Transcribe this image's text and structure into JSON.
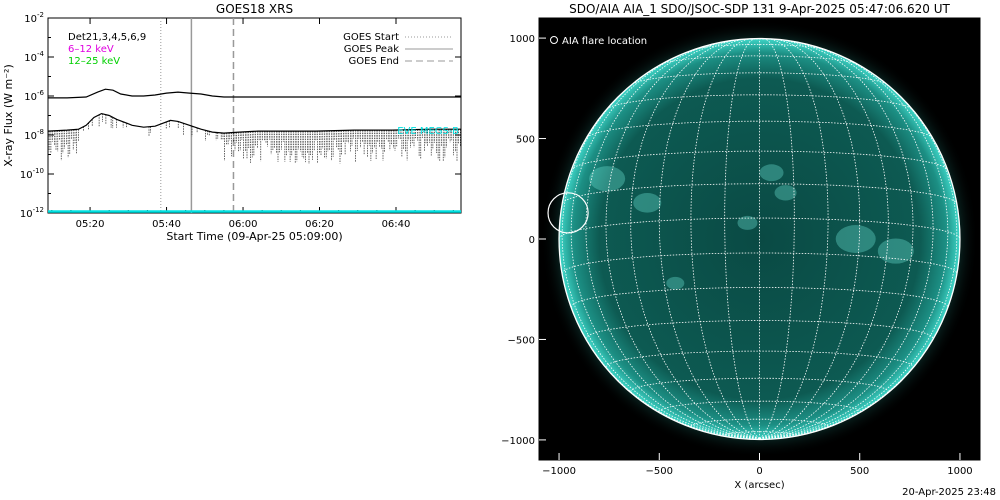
{
  "chart_data": [
    {
      "type": "line",
      "title": "GOES18 XRS",
      "xlabel": "Start Time (09-Apr-25 05:09:00)",
      "ylabel": "X-ray Flux (W m⁻²)",
      "log_y": true,
      "ylim_exponent": [
        -12,
        -2
      ],
      "xlim_minutes": [
        0,
        108
      ],
      "x_ticks": [
        {
          "label": "05:20",
          "min": 11
        },
        {
          "label": "05:40",
          "min": 31
        },
        {
          "label": "06:00",
          "min": 51
        },
        {
          "label": "06:20",
          "min": 71
        },
        {
          "label": "06:40",
          "min": 91
        }
      ],
      "y_ticks": [
        {
          "base": "10",
          "exp": "-2",
          "value": -2
        },
        {
          "base": "10",
          "exp": "-4",
          "value": -4
        },
        {
          "base": "10",
          "exp": "-6",
          "value": -6
        },
        {
          "base": "10",
          "exp": "-8",
          "value": -8
        },
        {
          "base": "10",
          "exp": "-10",
          "value": -10
        },
        {
          "base": "10",
          "exp": "-12",
          "value": -12
        }
      ],
      "legend_left": [
        {
          "text": "Det21,3,4,5,6,9",
          "color": "#000000"
        },
        {
          "text": "6–12 keV",
          "color": "#e000e0"
        },
        {
          "text": "12–25 keV",
          "color": "#00d000"
        }
      ],
      "legend_right": [
        {
          "text": "GOES Start",
          "style": "dotted"
        },
        {
          "text": "GOES Peak",
          "style": "solid"
        },
        {
          "text": "GOES End",
          "style": "dashed"
        }
      ],
      "lines": {
        "start_min": 29.5,
        "peak_min": 37.5,
        "end_min": 48.5
      },
      "annotation": "EVE MEGS-B",
      "series": [
        {
          "name": "GOES long",
          "x": [
            0,
            5,
            10,
            13,
            15,
            17,
            19,
            22,
            25,
            28,
            31,
            34,
            37,
            40,
            43,
            46,
            50,
            55,
            60,
            70,
            80,
            90,
            100,
            108
          ],
          "y_exp": [
            -6.1,
            -6.1,
            -6.05,
            -5.8,
            -5.65,
            -5.7,
            -5.9,
            -6.0,
            -6.0,
            -5.95,
            -5.85,
            -5.8,
            -5.85,
            -5.9,
            -6.0,
            -6.05,
            -6.05,
            -6.05,
            -6.05,
            -6.05,
            -6.05,
            -6.05,
            -6.05,
            -6.05
          ]
        },
        {
          "name": "GOES short",
          "x": [
            0,
            5,
            8,
            10,
            12,
            14,
            16,
            18,
            20,
            22,
            25,
            28,
            30,
            32,
            34,
            37,
            40,
            43,
            46,
            50,
            55,
            60,
            70,
            80,
            90,
            100,
            108
          ],
          "y_exp": [
            -7.8,
            -7.75,
            -7.7,
            -7.5,
            -7.1,
            -6.9,
            -7.0,
            -7.2,
            -7.35,
            -7.5,
            -7.6,
            -7.55,
            -7.4,
            -7.25,
            -7.3,
            -7.5,
            -7.7,
            -7.85,
            -7.9,
            -7.85,
            -7.8,
            -7.8,
            -7.8,
            -7.75,
            -7.75,
            -7.7,
            -7.7
          ]
        }
      ]
    },
    {
      "type": "image",
      "title": "SDO/AIA AIA_1 SDO/JSOC-SDP 131  9-Apr-2025 05:47:06.620 UT",
      "xlabel": "X (arcsec)",
      "ylabel": "",
      "xlim": [
        -1100,
        1100
      ],
      "ylim": [
        -1100,
        1100
      ],
      "x_ticks": [
        -1000,
        -500,
        0,
        500,
        1000
      ],
      "y_ticks": [
        -1000,
        -500,
        0,
        500,
        1000
      ],
      "x_tick_labels": [
        "−1000",
        "−500",
        "0",
        "500",
        "1000"
      ],
      "y_tick_labels": [
        "−1000",
        "−500",
        "0",
        "500",
        "1000"
      ],
      "legend": "AIA flare location",
      "solar_radius_arcsec": 1000,
      "flare_location": {
        "x": -955,
        "y": 130,
        "radius": 100
      },
      "colors": {
        "disk": "#0a4a44",
        "limb": "#3fd6c8",
        "grid": "#ffffff"
      }
    }
  ],
  "footer": {
    "timestamp": "20-Apr-2025 23:48"
  }
}
